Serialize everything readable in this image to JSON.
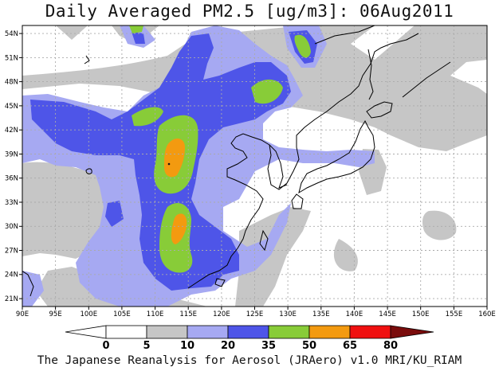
{
  "title": "Daily Averaged PM2.5 [ug/m3]: 06Aug2011",
  "footer": "The Japanese Reanalysis for Aerosol (JRAero) v1.0 MRI/KU_RIAM",
  "map": {
    "lon_range": [
      90,
      160
    ],
    "lat_range": [
      20,
      55
    ],
    "lon_ticks": [
      "90E",
      "95E",
      "100E",
      "105E",
      "110E",
      "115E",
      "120E",
      "125E",
      "130E",
      "135E",
      "140E",
      "145E",
      "150E",
      "155E",
      "160E"
    ],
    "lat_ticks": [
      "54N",
      "51N",
      "48N",
      "45N",
      "42N",
      "39N",
      "36N",
      "33N",
      "30N",
      "27N",
      "24N",
      "21N"
    ],
    "grid": "dotted"
  },
  "colorbar": {
    "levels": [
      "0",
      "5",
      "10",
      "20",
      "35",
      "50",
      "65",
      "80"
    ],
    "colors": [
      "#ffffff",
      "#c6c6c6",
      "#a6a9f2",
      "#4e55e8",
      "#88cc38",
      "#f39a10",
      "#f01010",
      "#7a0c0c"
    ]
  }
}
